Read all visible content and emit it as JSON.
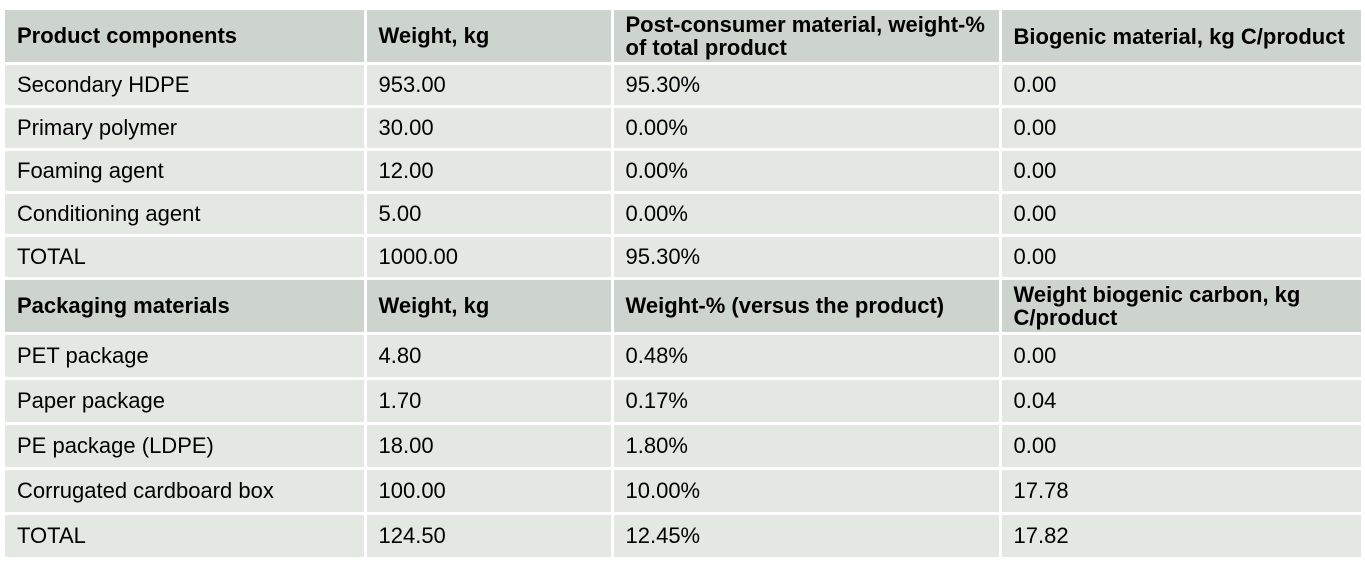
{
  "product_section": {
    "headers": [
      "Product components",
      "Weight, kg",
      "Post-consumer material, weight-% of total product",
      "Biogenic material, kg C/product"
    ],
    "rows": [
      [
        "Secondary HDPE",
        "953.00",
        "95.30%",
        "0.00"
      ],
      [
        "Primary polymer",
        "30.00",
        "0.00%",
        "0.00"
      ],
      [
        "Foaming agent",
        "12.00",
        "0.00%",
        "0.00"
      ],
      [
        "Conditioning agent",
        "5.00",
        "0.00%",
        "0.00"
      ],
      [
        "TOTAL",
        "1000.00",
        "95.30%",
        "0.00"
      ]
    ]
  },
  "packaging_section": {
    "headers": [
      "Packaging materials",
      "Weight, kg",
      "Weight-% (versus the product)",
      "Weight biogenic carbon, kg C/product"
    ],
    "rows": [
      [
        "PET package",
        "4.80",
        "0.48%",
        "0.00"
      ],
      [
        "Paper package",
        "1.70",
        "0.17%",
        "0.04"
      ],
      [
        "PE package (LDPE)",
        "18.00",
        "1.80%",
        "0.00"
      ],
      [
        "Corrugated cardboard box",
        "100.00",
        "10.00%",
        "17.78"
      ],
      [
        "TOTAL",
        "124.50",
        "12.45%",
        "17.82"
      ]
    ]
  },
  "colors": {
    "header_bg": "#cdd4cd",
    "row_bg": "#e3e8e3"
  }
}
